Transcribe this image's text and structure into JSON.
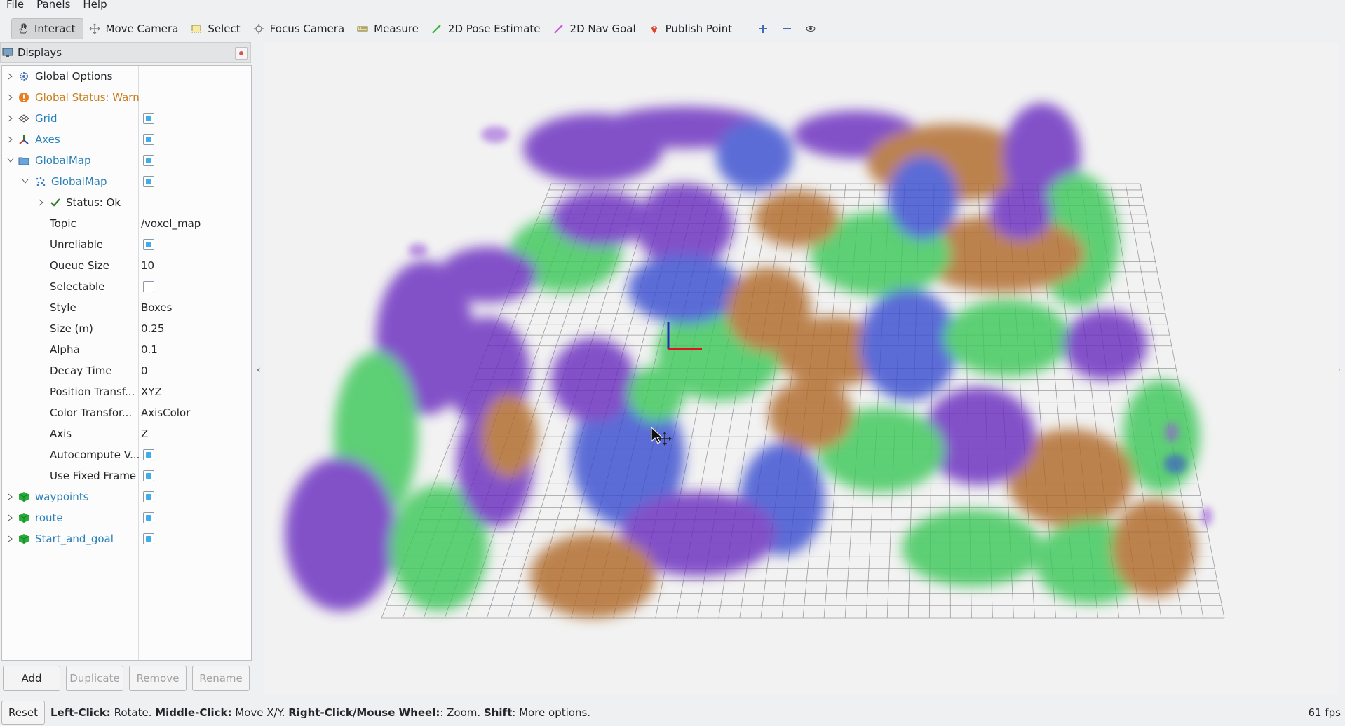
{
  "menubar": {
    "items": [
      "File",
      "Panels",
      "Help"
    ]
  },
  "toolbar": {
    "tools": [
      {
        "label": "Interact",
        "icon": "hand-icon",
        "active": true
      },
      {
        "label": "Move Camera",
        "icon": "move-camera-icon"
      },
      {
        "label": "Select",
        "icon": "select-icon"
      },
      {
        "label": "Focus Camera",
        "icon": "focus-camera-icon"
      },
      {
        "label": "Measure",
        "icon": "measure-icon"
      },
      {
        "label": "2D Pose Estimate",
        "icon": "pose-estimate-icon"
      },
      {
        "label": "2D Nav Goal",
        "icon": "nav-goal-icon"
      },
      {
        "label": "Publish Point",
        "icon": "publish-point-icon"
      }
    ],
    "extra_icons": [
      "plus-icon",
      "minus-icon",
      "eye-icon"
    ]
  },
  "displays_panel": {
    "title": "Displays",
    "rows": [
      {
        "name": "Global Options"
      },
      {
        "name": "Global Status: Warn"
      },
      {
        "name": "Grid",
        "checked": true
      },
      {
        "name": "Axes",
        "checked": true
      },
      {
        "name": "GlobalMap",
        "checked": true
      },
      {
        "name": "GlobalMap",
        "checked": true
      },
      {
        "name": "Status: Ok"
      },
      {
        "name": "Topic",
        "value": "/voxel_map"
      },
      {
        "name": "Unreliable",
        "checked": true
      },
      {
        "name": "Queue Size",
        "value": "10"
      },
      {
        "name": "Selectable",
        "checked": false
      },
      {
        "name": "Style",
        "value": "Boxes"
      },
      {
        "name": "Size (m)",
        "value": "0.25"
      },
      {
        "name": "Alpha",
        "value": "0.1"
      },
      {
        "name": "Decay Time",
        "value": "0"
      },
      {
        "name": "Position Transf...",
        "value": "XYZ"
      },
      {
        "name": "Color Transfor...",
        "value": "AxisColor"
      },
      {
        "name": "Axis",
        "value": "Z"
      },
      {
        "name": "Autocompute V...",
        "checked": true
      },
      {
        "name": "Use Fixed Frame",
        "checked": true
      },
      {
        "name": "waypoints",
        "checked": true
      },
      {
        "name": "route",
        "checked": true
      },
      {
        "name": "Start_and_goal",
        "checked": true
      }
    ],
    "buttons": {
      "add": "Add",
      "duplicate": "Duplicate",
      "remove": "Remove",
      "rename": "Rename"
    }
  },
  "statusbar": {
    "reset": "Reset",
    "help_parts": [
      {
        "bold": "Left-Click:",
        "text": " Rotate. "
      },
      {
        "bold": "Middle-Click:",
        "text": " Move X/Y. "
      },
      {
        "bold": "Right-Click/Mouse Wheel:",
        "text": ": Zoom. "
      },
      {
        "bold": "Shift",
        "text": ": More options."
      }
    ],
    "fps": "61 fps"
  },
  "colors": {
    "accent": "#3daee9",
    "link_blue": "#2980b9",
    "warn_orange": "#c87d1a",
    "voxel_purple": "#6a2fc0",
    "voxel_green": "#3cc85a",
    "voxel_brown": "#b06a2a",
    "voxel_blue": "#3a4fd0"
  }
}
